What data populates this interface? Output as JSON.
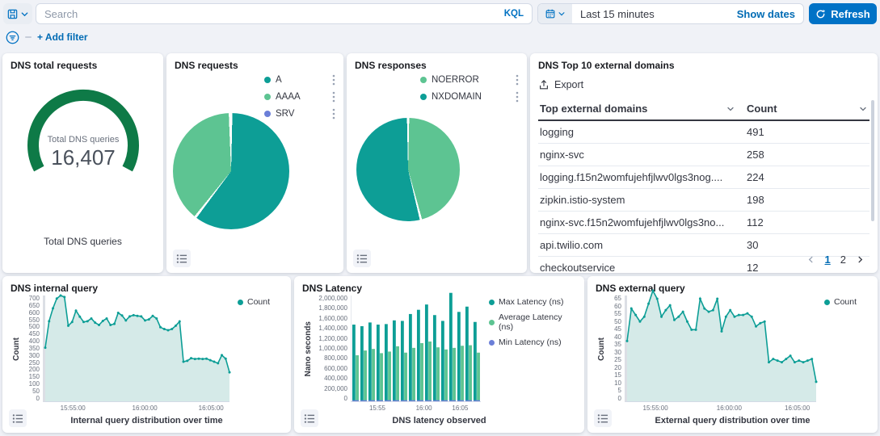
{
  "topbar": {
    "search_placeholder": "Search",
    "kql_label": "KQL",
    "time_range": "Last 15 minutes",
    "show_dates_label": "Show dates",
    "refresh_label": "Refresh",
    "add_filter_label": "+ Add filter"
  },
  "colors": {
    "teal": "#0d9e96",
    "green": "#5dc492",
    "purple": "#6b7fd8",
    "gauge_green": "#0e7a47",
    "accent_blue": "#0072c6",
    "link_blue": "#006bb4"
  },
  "chart_data": [
    {
      "id": "dns_total_requests",
      "type": "gauge",
      "title": "DNS total requests",
      "center_label": "Total DNS queries",
      "value": 16407,
      "value_display": "16,407",
      "bottom_label": "Total DNS queries",
      "color": "#0e7a47"
    },
    {
      "id": "dns_requests",
      "type": "pie",
      "title": "DNS requests",
      "slices": [
        {
          "label": "A",
          "value": 60.5,
          "color": "#0d9e96"
        },
        {
          "label": "AAAA",
          "value": 39.2,
          "color": "#5dc492"
        },
        {
          "label": "SRV",
          "value": 0.3,
          "color": "#6b7fd8"
        }
      ],
      "legend_position": "top-right"
    },
    {
      "id": "dns_responses",
      "type": "pie",
      "title": "DNS responses",
      "slices": [
        {
          "label": "NOERROR",
          "value": 46,
          "color": "#5dc492"
        },
        {
          "label": "NXDOMAIN",
          "value": 54,
          "color": "#0d9e96"
        }
      ],
      "legend_position": "top-right"
    },
    {
      "id": "dns_top_external_domains",
      "type": "table",
      "title": "DNS Top 10 external domains",
      "export_label": "Export",
      "columns": [
        "Top external domains",
        "Count"
      ],
      "rows": [
        [
          "logging",
          "491"
        ],
        [
          "nginx-svc",
          "258"
        ],
        [
          "logging.f15n2womfujehfjlwv0lgs3nog....",
          "224"
        ],
        [
          "zipkin.istio-system",
          "198"
        ],
        [
          "nginx-svc.f15n2womfujehfjlwv0lgs3no...",
          "112"
        ],
        [
          "api.twilio.com",
          "30"
        ],
        [
          "checkoutservice",
          "12"
        ]
      ],
      "pagination": {
        "pages": [
          "1",
          "2"
        ],
        "current": "1"
      }
    },
    {
      "id": "dns_internal_query",
      "type": "area",
      "title": "DNS internal query",
      "xlabel": "Internal query distribution over time",
      "ylabel": "Count",
      "ylim": [
        0,
        700
      ],
      "color": "#0d9e96",
      "fill": "#d5eae8",
      "legend": [
        {
          "label": "Count",
          "color": "#0d9e96"
        }
      ],
      "y_ticks": [
        "700",
        "650",
        "600",
        "550",
        "500",
        "450",
        "400",
        "350",
        "300",
        "250",
        "200",
        "150",
        "100",
        "50",
        "0"
      ],
      "x_ticks": [
        {
          "label": "15:55:00",
          "pos": 0.15
        },
        {
          "label": "16:00:00",
          "pos": 0.54
        },
        {
          "label": "16:05:00",
          "pos": 0.9
        }
      ],
      "values": [
        355,
        530,
        615,
        680,
        700,
        690,
        500,
        525,
        600,
        560,
        525,
        530,
        548,
        520,
        505,
        532,
        548,
        505,
        512,
        585,
        568,
        535,
        562,
        570,
        565,
        562,
        535,
        542,
        565,
        548,
        490,
        478,
        470,
        478,
        500,
        528,
        262,
        268,
        285,
        280,
        282,
        280,
        282,
        272,
        262,
        252,
        305,
        282,
        192
      ]
    },
    {
      "id": "dns_latency",
      "type": "bar",
      "title": "DNS Latency",
      "xlabel": "DNS latency observed",
      "ylabel": "Nano seconds",
      "ylim": [
        0,
        2000000
      ],
      "y_ticks": [
        "2,000,000",
        "1,800,000",
        "1,600,000",
        "1,400,000",
        "1,200,000",
        "1,000,000",
        "800,000",
        "600,000",
        "400,000",
        "200,000",
        "0"
      ],
      "x_ticks": [
        {
          "label": "15:55",
          "pos": 0.2
        },
        {
          "label": "16:00",
          "pos": 0.56
        },
        {
          "label": "16:05",
          "pos": 0.84
        }
      ],
      "series": [
        {
          "name": "Max Latency (ns)",
          "color": "#0d9e96",
          "values": [
            1450000,
            1420000,
            1490000,
            1450000,
            1460000,
            1530000,
            1520000,
            1650000,
            1730000,
            1830000,
            1630000,
            1520000,
            2050000,
            1690000,
            1790000,
            1500000
          ]
        },
        {
          "name": "Average Latency (ns)",
          "color": "#5dc492",
          "values": [
            870000,
            960000,
            990000,
            910000,
            940000,
            1040000,
            920000,
            1010000,
            1100000,
            1130000,
            1020000,
            980000,
            1010000,
            1050000,
            1060000,
            920000
          ]
        },
        {
          "name": "Min Latency (ns)",
          "color": "#6b7fd8",
          "values": [
            20000,
            20000,
            20000,
            20000,
            20000,
            20000,
            20000,
            20000,
            20000,
            20000,
            20000,
            20000,
            20000,
            20000,
            20000,
            20000
          ]
        }
      ]
    },
    {
      "id": "dns_external_query",
      "type": "area",
      "title": "DNS external query",
      "xlabel": "External query distribution over time",
      "ylabel": "Count",
      "ylim": [
        0,
        65
      ],
      "color": "#0d9e96",
      "fill": "#d5eae8",
      "legend": [
        {
          "label": "Count",
          "color": "#0d9e96"
        }
      ],
      "y_ticks": [
        "65",
        "60",
        "55",
        "50",
        "45",
        "40",
        "35",
        "30",
        "25",
        "20",
        "15",
        "10",
        "5",
        "0"
      ],
      "x_ticks": [
        {
          "label": "15:55:00",
          "pos": 0.15
        },
        {
          "label": "16:00:00",
          "pos": 0.54
        },
        {
          "label": "16:05:00",
          "pos": 0.9
        }
      ],
      "values": [
        37,
        57,
        53,
        49,
        52,
        60,
        68,
        63,
        52,
        56,
        59,
        50,
        52,
        55,
        49,
        44,
        44,
        63,
        57,
        55,
        56,
        63,
        43,
        52,
        56,
        52,
        53,
        53,
        54,
        52,
        46,
        48,
        49,
        24,
        26,
        25,
        24,
        26,
        28,
        24,
        25,
        24,
        25,
        26,
        12
      ]
    }
  ]
}
